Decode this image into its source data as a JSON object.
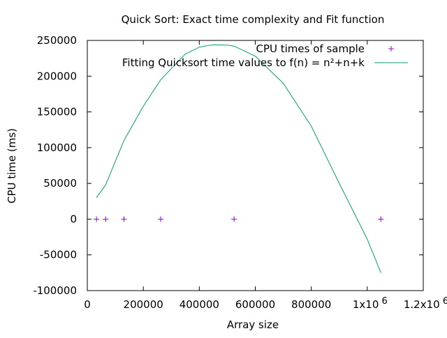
{
  "chart_data": {
    "type": "scatter",
    "title": "Quick Sort: Exact time complexity and Fit function",
    "xlabel": "Array size",
    "ylabel": "CPU time (ms)",
    "xlim": [
      0,
      1200000
    ],
    "ylim": [
      -100000,
      250000
    ],
    "x_ticks": [
      {
        "value": 0,
        "label": "0"
      },
      {
        "value": 200000,
        "label": "200000"
      },
      {
        "value": 400000,
        "label": "400000"
      },
      {
        "value": 600000,
        "label": "600000"
      },
      {
        "value": 800000,
        "label": "800000"
      },
      {
        "value": 1000000,
        "label": "1x10",
        "exp": "6"
      },
      {
        "value": 1200000,
        "label": "1.2x10",
        "exp": "6"
      }
    ],
    "y_ticks": [
      {
        "value": -100000,
        "label": "-100000"
      },
      {
        "value": -50000,
        "label": "-50000"
      },
      {
        "value": 0,
        "label": "0"
      },
      {
        "value": 50000,
        "label": "50000"
      },
      {
        "value": 100000,
        "label": "100000"
      },
      {
        "value": 150000,
        "label": "150000"
      },
      {
        "value": 200000,
        "label": "200000"
      },
      {
        "value": 250000,
        "label": "250000"
      }
    ],
    "legend_position": "top-right",
    "grid": false,
    "series": [
      {
        "name": "CPU times of sample",
        "kind": "points",
        "marker": "+",
        "color": "#9400d3",
        "points": [
          [
            32768,
            0
          ],
          [
            65536,
            0
          ],
          [
            131072,
            0
          ],
          [
            262144,
            0
          ],
          [
            524288,
            0
          ],
          [
            1048576,
            0
          ]
        ]
      },
      {
        "name": "Fitting Quicksort time values to f(n) = n²+n+k",
        "kind": "line",
        "color": "#009e73",
        "points": [
          [
            32768,
            30000
          ],
          [
            65536,
            48000
          ],
          [
            131072,
            110000
          ],
          [
            200000,
            158000
          ],
          [
            262144,
            195000
          ],
          [
            350000,
            231000
          ],
          [
            400000,
            240500
          ],
          [
            430000,
            243000
          ],
          [
            460000,
            244000
          ],
          [
            500000,
            243500
          ],
          [
            524288,
            242000
          ],
          [
            600000,
            228000
          ],
          [
            700000,
            190000
          ],
          [
            800000,
            130000
          ],
          [
            900000,
            50000
          ],
          [
            1000000,
            -28000
          ],
          [
            1048576,
            -75000
          ]
        ]
      }
    ]
  }
}
